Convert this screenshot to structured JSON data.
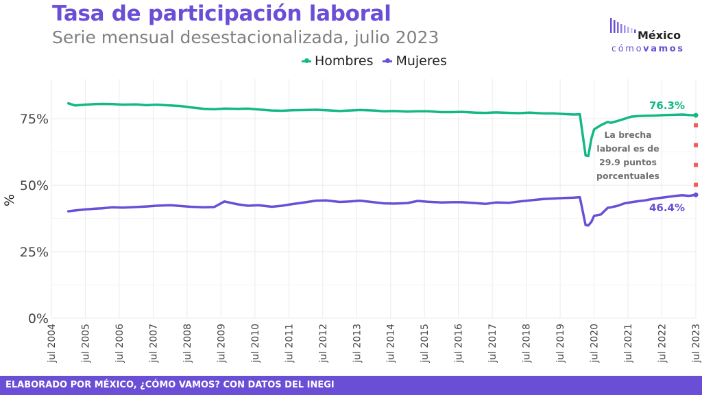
{
  "header": {
    "title": "Tasa de participación laboral",
    "subtitle": "Serie mensual desestacionalizada, julio 2023"
  },
  "logo": {
    "name": "México",
    "tagline_a": "cómo",
    "tagline_b": "vamos"
  },
  "footer": {
    "text": "ELABORADO POR MÉXICO, ¿CÓMO VAMOS? CON DATOS DEL INEGI"
  },
  "colors": {
    "hombres": "#13b886",
    "mujeres": "#6a4fd6",
    "gap_marker": "#f15b5b",
    "grid": "#ebebeb",
    "annotation_text": "#707070"
  },
  "chart_data": {
    "type": "line",
    "title": "Tasa de participación laboral",
    "ylabel": "%",
    "ylim": [
      0,
      90
    ],
    "yticks": [
      0,
      25,
      50,
      75
    ],
    "ytick_labels": [
      "0%",
      "25%",
      "50%",
      "75%"
    ],
    "xlim": [
      2004.5,
      2023.5
    ],
    "xticks": [
      2004.5,
      2005.5,
      2006.5,
      2007.5,
      2008.5,
      2009.5,
      2010.5,
      2011.5,
      2012.5,
      2013.5,
      2014.5,
      2015.5,
      2016.5,
      2017.5,
      2018.5,
      2019.5,
      2020.5,
      2021.5,
      2022.5,
      2023.5
    ],
    "xtick_labels": [
      "jul 2004",
      "jul 2005",
      "jul 2006",
      "jul 2007",
      "jul 2008",
      "jul 2009",
      "jul 2010",
      "jul 2011",
      "jul 2012",
      "jul 2013",
      "jul 2014",
      "jul 2015",
      "jul 2016",
      "jul 2017",
      "jul 2018",
      "jul 2019",
      "jul 2020",
      "jul 2021",
      "jul 2022",
      "jul 2023"
    ],
    "grid": true,
    "legend_position": "top",
    "series": [
      {
        "name": "Hombres",
        "points": [
          [
            2005.0,
            80.8
          ],
          [
            2005.2,
            80.0
          ],
          [
            2005.5,
            80.3
          ],
          [
            2005.8,
            80.5
          ],
          [
            2006.0,
            80.6
          ],
          [
            2006.3,
            80.5
          ],
          [
            2006.6,
            80.3
          ],
          [
            2007.0,
            80.4
          ],
          [
            2007.3,
            80.1
          ],
          [
            2007.6,
            80.3
          ],
          [
            2008.0,
            80.0
          ],
          [
            2008.3,
            79.8
          ],
          [
            2008.6,
            79.3
          ],
          [
            2009.0,
            78.7
          ],
          [
            2009.3,
            78.6
          ],
          [
            2009.6,
            78.8
          ],
          [
            2010.0,
            78.7
          ],
          [
            2010.3,
            78.8
          ],
          [
            2010.6,
            78.5
          ],
          [
            2011.0,
            78.1
          ],
          [
            2011.3,
            78.0
          ],
          [
            2011.6,
            78.2
          ],
          [
            2012.0,
            78.3
          ],
          [
            2012.3,
            78.4
          ],
          [
            2012.6,
            78.2
          ],
          [
            2013.0,
            77.9
          ],
          [
            2013.3,
            78.1
          ],
          [
            2013.6,
            78.3
          ],
          [
            2014.0,
            78.1
          ],
          [
            2014.3,
            77.8
          ],
          [
            2014.6,
            77.9
          ],
          [
            2015.0,
            77.7
          ],
          [
            2015.3,
            77.8
          ],
          [
            2015.6,
            77.8
          ],
          [
            2016.0,
            77.5
          ],
          [
            2016.3,
            77.5
          ],
          [
            2016.6,
            77.6
          ],
          [
            2017.0,
            77.3
          ],
          [
            2017.3,
            77.2
          ],
          [
            2017.6,
            77.4
          ],
          [
            2018.0,
            77.2
          ],
          [
            2018.3,
            77.1
          ],
          [
            2018.6,
            77.3
          ],
          [
            2019.0,
            77.0
          ],
          [
            2019.3,
            77.0
          ],
          [
            2019.6,
            76.8
          ],
          [
            2019.9,
            76.6
          ],
          [
            2020.08,
            76.7
          ],
          [
            2020.25,
            61.2
          ],
          [
            2020.33,
            61.0
          ],
          [
            2020.42,
            67.5
          ],
          [
            2020.5,
            71.0
          ],
          [
            2020.7,
            72.6
          ],
          [
            2020.9,
            73.8
          ],
          [
            2021.0,
            73.5
          ],
          [
            2021.2,
            74.2
          ],
          [
            2021.4,
            75.0
          ],
          [
            2021.6,
            75.8
          ],
          [
            2021.8,
            76.0
          ],
          [
            2022.0,
            76.1
          ],
          [
            2022.3,
            76.2
          ],
          [
            2022.6,
            76.4
          ],
          [
            2022.9,
            76.5
          ],
          [
            2023.1,
            76.6
          ],
          [
            2023.3,
            76.4
          ],
          [
            2023.5,
            76.3
          ]
        ]
      },
      {
        "name": "Mujeres",
        "points": [
          [
            2005.0,
            40.2
          ],
          [
            2005.2,
            40.5
          ],
          [
            2005.5,
            40.9
          ],
          [
            2005.8,
            41.2
          ],
          [
            2006.0,
            41.3
          ],
          [
            2006.3,
            41.7
          ],
          [
            2006.6,
            41.6
          ],
          [
            2007.0,
            41.8
          ],
          [
            2007.3,
            42.0
          ],
          [
            2007.6,
            42.3
          ],
          [
            2008.0,
            42.5
          ],
          [
            2008.3,
            42.2
          ],
          [
            2008.6,
            41.9
          ],
          [
            2009.0,
            41.7
          ],
          [
            2009.3,
            41.8
          ],
          [
            2009.6,
            43.9
          ],
          [
            2010.0,
            42.8
          ],
          [
            2010.3,
            42.3
          ],
          [
            2010.6,
            42.5
          ],
          [
            2011.0,
            41.9
          ],
          [
            2011.3,
            42.3
          ],
          [
            2011.6,
            42.9
          ],
          [
            2012.0,
            43.6
          ],
          [
            2012.3,
            44.2
          ],
          [
            2012.6,
            44.3
          ],
          [
            2013.0,
            43.7
          ],
          [
            2013.3,
            43.9
          ],
          [
            2013.6,
            44.2
          ],
          [
            2014.0,
            43.6
          ],
          [
            2014.3,
            43.2
          ],
          [
            2014.6,
            43.1
          ],
          [
            2015.0,
            43.3
          ],
          [
            2015.3,
            44.1
          ],
          [
            2015.6,
            43.8
          ],
          [
            2016.0,
            43.5
          ],
          [
            2016.3,
            43.6
          ],
          [
            2016.6,
            43.6
          ],
          [
            2017.0,
            43.3
          ],
          [
            2017.3,
            43.0
          ],
          [
            2017.6,
            43.5
          ],
          [
            2018.0,
            43.4
          ],
          [
            2018.3,
            43.9
          ],
          [
            2018.6,
            44.3
          ],
          [
            2019.0,
            44.8
          ],
          [
            2019.3,
            45.0
          ],
          [
            2019.6,
            45.2
          ],
          [
            2019.9,
            45.3
          ],
          [
            2020.08,
            45.5
          ],
          [
            2020.25,
            35.0
          ],
          [
            2020.33,
            34.9
          ],
          [
            2020.42,
            36.2
          ],
          [
            2020.5,
            38.5
          ],
          [
            2020.7,
            39.0
          ],
          [
            2020.9,
            41.5
          ],
          [
            2021.0,
            41.7
          ],
          [
            2021.2,
            42.3
          ],
          [
            2021.4,
            43.2
          ],
          [
            2021.6,
            43.6
          ],
          [
            2021.8,
            44.0
          ],
          [
            2022.0,
            44.3
          ],
          [
            2022.3,
            45.0
          ],
          [
            2022.6,
            45.5
          ],
          [
            2022.9,
            46.0
          ],
          [
            2023.1,
            46.2
          ],
          [
            2023.3,
            46.0
          ],
          [
            2023.5,
            46.4
          ]
        ]
      }
    ],
    "end_labels": {
      "hombres": "76.3%",
      "mujeres": "46.4%"
    },
    "gap_annotation": {
      "lines": [
        "La brecha",
        "laboral es de",
        "29.9 puntos",
        "porcentuales"
      ]
    }
  }
}
